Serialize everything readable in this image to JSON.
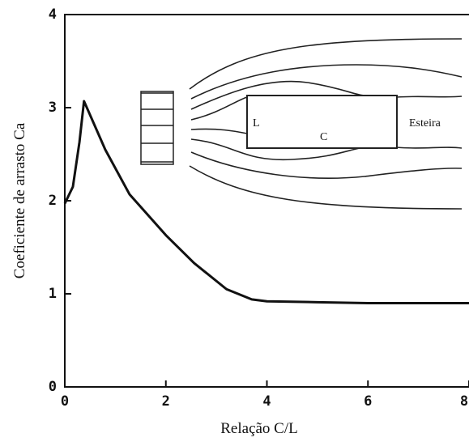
{
  "chart_data": {
    "type": "line",
    "x_label": "Relação C/L",
    "y_label": "Coeficiente de arrasto Ca",
    "x": [
      0,
      0.16,
      0.29,
      0.38,
      0.8,
      1.28,
      2,
      2.56,
      3.2,
      3.7,
      4,
      5,
      6,
      7,
      8
    ],
    "series": [
      {
        "color": "#111111",
        "values": [
          1.97,
          2.15,
          2.63,
          3.07,
          2.55,
          2.07,
          1.63,
          1.33,
          1.05,
          0.94,
          0.92,
          0.91,
          0.9,
          0.9,
          0.9
        ]
      }
    ],
    "xlim": [
      0,
      8
    ],
    "xticks": [
      0,
      2,
      4,
      6,
      8
    ],
    "ylim": [
      0,
      4
    ],
    "yticks": [
      0,
      1,
      2,
      3,
      4
    ],
    "annotations": [
      "L",
      "C",
      "Esteira"
    ]
  }
}
